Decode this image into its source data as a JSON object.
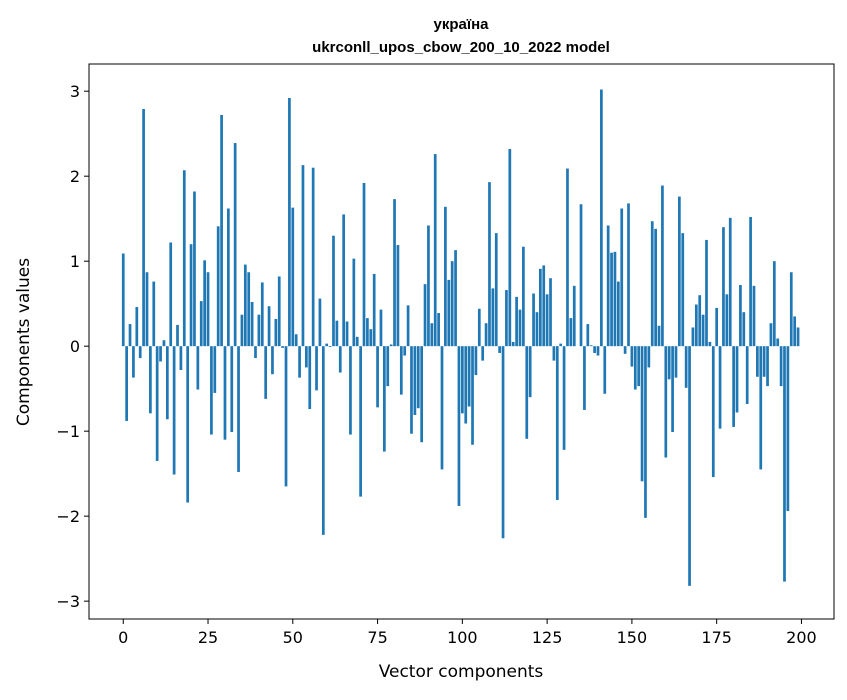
{
  "chart_data": {
    "type": "bar",
    "title_line1": "україна",
    "title_line2": "ukrconll_upos_cbow_200_10_2022 model",
    "xlabel": "Vector components",
    "ylabel": "Components values",
    "xlim": [
      -10.1,
      209.6
    ],
    "ylim": [
      -3.21,
      3.32
    ],
    "xticks": [
      0,
      25,
      50,
      75,
      100,
      125,
      150,
      175,
      200
    ],
    "xtick_labels": [
      "0",
      "25",
      "50",
      "75",
      "100",
      "125",
      "150",
      "175",
      "200"
    ],
    "yticks": [
      -3,
      -2,
      -1,
      0,
      1,
      2,
      3
    ],
    "ytick_labels": [
      "−3",
      "−2",
      "−1",
      "0",
      "1",
      "2",
      "3"
    ],
    "bar_color": "#1f77b4",
    "grid": false,
    "values": [
      1.09,
      -0.88,
      0.26,
      -0.37,
      0.46,
      -0.14,
      2.79,
      0.87,
      -0.79,
      0.76,
      -1.35,
      -0.18,
      0.07,
      -0.86,
      1.22,
      -1.51,
      0.25,
      -0.28,
      2.07,
      -1.84,
      1.2,
      1.82,
      -0.51,
      0.53,
      1.01,
      0.87,
      -1.04,
      -0.55,
      1.41,
      2.72,
      -1.1,
      1.62,
      -1.01,
      2.39,
      -1.48,
      0.37,
      0.96,
      0.87,
      0.52,
      -0.14,
      0.37,
      0.75,
      -0.62,
      0.47,
      -0.33,
      0.32,
      0.82,
      -0.02,
      -1.65,
      2.92,
      1.63,
      0.14,
      -0.37,
      2.13,
      -0.25,
      -0.74,
      2.1,
      -0.52,
      0.56,
      -2.22,
      0.03,
      -0.01,
      1.3,
      0.3,
      -0.31,
      1.55,
      0.29,
      -1.04,
      1.03,
      0.11,
      -1.77,
      1.92,
      0.33,
      0.2,
      0.85,
      -0.72,
      0.43,
      -1.24,
      -0.47,
      0.02,
      1.73,
      1.19,
      -0.57,
      -0.11,
      0.48,
      -1.03,
      -0.81,
      -0.73,
      -1.13,
      0.73,
      1.42,
      0.27,
      2.26,
      0.39,
      -1.45,
      1.64,
      0.78,
      1.0,
      1.13,
      -1.88,
      -0.79,
      -0.91,
      -0.71,
      -1.16,
      -0.34,
      0.44,
      -0.17,
      0.27,
      1.93,
      0.68,
      1.33,
      -0.08,
      -2.26,
      0.66,
      2.32,
      0.05,
      0.58,
      0.43,
      1.17,
      -1.09,
      -0.6,
      0.62,
      0.4,
      0.91,
      0.95,
      0.61,
      0.8,
      -0.17,
      -1.81,
      0.03,
      -1.22,
      2.09,
      0.33,
      0.71,
      0.0,
      1.67,
      -0.75,
      0.26,
      0.01,
      -0.08,
      -0.11,
      3.02,
      -0.56,
      1.42,
      1.1,
      1.11,
      0.76,
      1.62,
      -0.09,
      1.68,
      -0.24,
      -0.51,
      -0.47,
      -1.59,
      -2.02,
      -0.25,
      1.47,
      1.38,
      0.24,
      1.89,
      -1.31,
      -0.39,
      -1.01,
      -0.37,
      1.76,
      1.33,
      -0.49,
      -2.82,
      0.22,
      0.49,
      0.6,
      0.37,
      1.25,
      0.05,
      -1.54,
      0.45,
      -0.97,
      1.4,
      0.61,
      1.51,
      -0.95,
      -0.78,
      0.72,
      0.4,
      -0.68,
      1.52,
      0.71,
      -0.36,
      -1.45,
      -0.36,
      -0.47,
      0.27,
      1.0,
      0.09,
      -0.47,
      -2.77,
      -1.94,
      0.87,
      0.35,
      0.22
    ]
  }
}
